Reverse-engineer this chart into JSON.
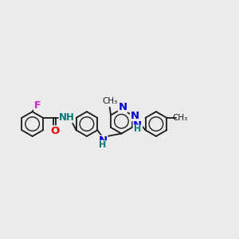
{
  "background_color": "#ebebeb",
  "bond_color": "#1a1a1a",
  "heteroatom_N_color": "#0000dd",
  "heteroatom_O_color": "#ee0000",
  "heteroatom_F_color": "#cc22cc",
  "NH_color": "#007777",
  "line_width": 1.3,
  "font_size": 8.5,
  "figsize": [
    3.0,
    3.0
  ],
  "dpi": 100,
  "ring_r": 0.55,
  "xlim": [
    0,
    10.5
  ],
  "ylim": [
    2.5,
    8.5
  ]
}
